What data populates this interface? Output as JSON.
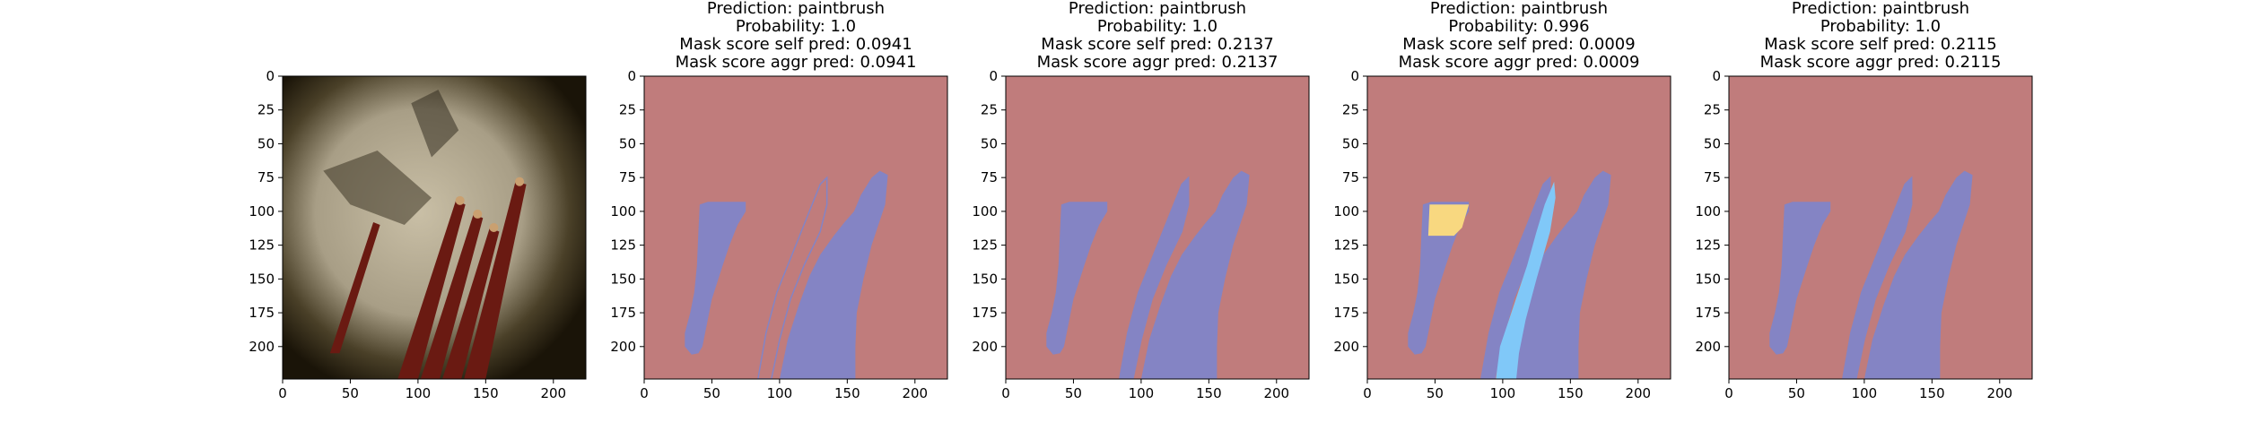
{
  "chart_data": [
    {
      "type": "image",
      "panel": "input-image",
      "title_lines": [],
      "xticks": [
        0,
        50,
        100,
        150,
        200
      ],
      "yticks": [
        0,
        25,
        50,
        75,
        100,
        125,
        150,
        175,
        200
      ],
      "xlim": [
        0,
        224
      ],
      "ylim": [
        224,
        0
      ]
    },
    {
      "type": "heatmap",
      "panel": "mask-1",
      "title_lines": [
        "Prediction: paintbrush",
        "Probability: 1.0",
        "Mask score self pred: 0.0941",
        "Mask score aggr pred: 0.0941"
      ],
      "prediction": "paintbrush",
      "probability": 1.0,
      "mask_score_self_pred": 0.0941,
      "mask_score_aggr_pred": 0.0941,
      "xticks": [
        0,
        50,
        100,
        150,
        200
      ],
      "yticks": [
        0,
        25,
        50,
        75,
        100,
        125,
        150,
        175,
        200
      ],
      "xlim": [
        0,
        224
      ],
      "ylim": [
        224,
        0
      ]
    },
    {
      "type": "heatmap",
      "panel": "mask-2",
      "title_lines": [
        "Prediction: paintbrush",
        "Probability: 1.0",
        "Mask score self pred: 0.2137",
        "Mask score aggr pred: 0.2137"
      ],
      "prediction": "paintbrush",
      "probability": 1.0,
      "mask_score_self_pred": 0.2137,
      "mask_score_aggr_pred": 0.2137,
      "xticks": [
        0,
        50,
        100,
        150,
        200
      ],
      "yticks": [
        0,
        25,
        50,
        75,
        100,
        125,
        150,
        175,
        200
      ],
      "xlim": [
        0,
        224
      ],
      "ylim": [
        224,
        0
      ]
    },
    {
      "type": "heatmap",
      "panel": "mask-3",
      "title_lines": [
        "Prediction: paintbrush",
        "Probability: 0.996",
        "Mask score self pred: 0.0009",
        "Mask score aggr pred: 0.0009"
      ],
      "prediction": "paintbrush",
      "probability": 0.996,
      "mask_score_self_pred": 0.0009,
      "mask_score_aggr_pred": 0.0009,
      "xticks": [
        0,
        50,
        100,
        150,
        200
      ],
      "yticks": [
        0,
        25,
        50,
        75,
        100,
        125,
        150,
        175,
        200
      ],
      "xlim": [
        0,
        224
      ],
      "ylim": [
        224,
        0
      ]
    },
    {
      "type": "heatmap",
      "panel": "mask-4",
      "title_lines": [
        "Prediction: paintbrush",
        "Probability: 1.0",
        "Mask score self pred: 0.2115",
        "Mask score aggr pred: 0.2115"
      ],
      "prediction": "paintbrush",
      "probability": 1.0,
      "mask_score_self_pred": 0.2115,
      "mask_score_aggr_pred": 0.2115,
      "xticks": [
        0,
        50,
        100,
        150,
        200
      ],
      "yticks": [
        0,
        25,
        50,
        75,
        100,
        125,
        150,
        175,
        200
      ],
      "xlim": [
        0,
        224
      ],
      "ylim": [
        224,
        0
      ]
    }
  ],
  "colors": {
    "background_region": "#c07c7c",
    "brush_region": "#8484c4",
    "highlight_yellow": "#f8d880",
    "highlight_cyan": "#80c8f8",
    "photo_dark": "#1a1408",
    "photo_cloth": "#a89e86",
    "brush_red": "#6a1a12",
    "ferrule": "#caa070"
  }
}
